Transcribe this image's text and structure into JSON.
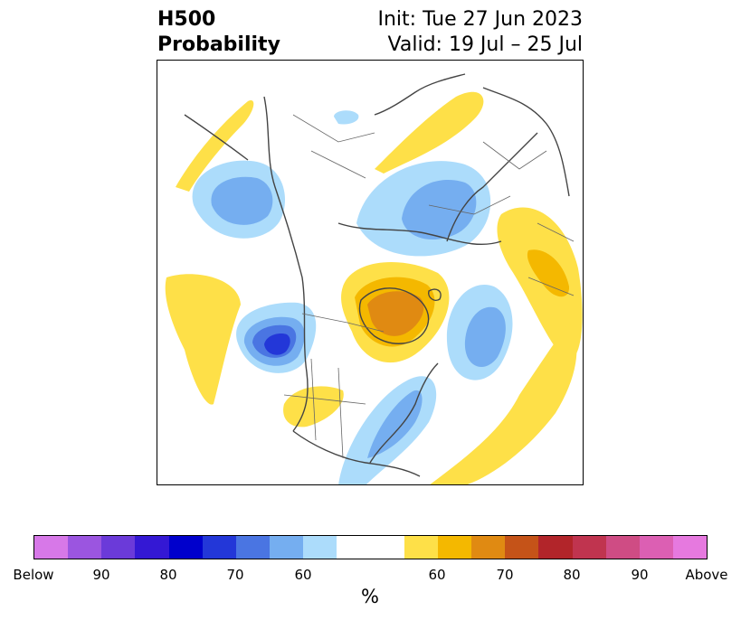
{
  "title": {
    "variable": "H500",
    "product": "Probability",
    "init": "Init: Tue 27 Jun 2023",
    "valid": "Valid: 19 Jul – 25 Jul"
  },
  "colorbar": {
    "colors": [
      "#d778e8",
      "#9b55e0",
      "#6b3ad9",
      "#3418d4",
      "#0000cc",
      "#2337d8",
      "#4a75e2",
      "#75aef0",
      "#acdcfb",
      "#ffffff",
      "#ffffff",
      "#fee048",
      "#f4b800",
      "#e08a12",
      "#c55318",
      "#b2252a",
      "#c0344f",
      "#cf4c84",
      "#dc5fb3",
      "#e679df"
    ],
    "tick_labels": [
      "Below",
      "90",
      "80",
      "70",
      "60",
      "60",
      "70",
      "80",
      "90",
      "Above"
    ],
    "unit": "%"
  },
  "map": {
    "colors": {
      "below_light": "#acdcfb",
      "below_med": "#75aef0",
      "below_strong": "#4a75e2",
      "below_deep": "#2337d8",
      "above_light": "#fee048",
      "above_med": "#f4b800",
      "above_strong": "#e08a12",
      "coast": "#444444"
    }
  }
}
